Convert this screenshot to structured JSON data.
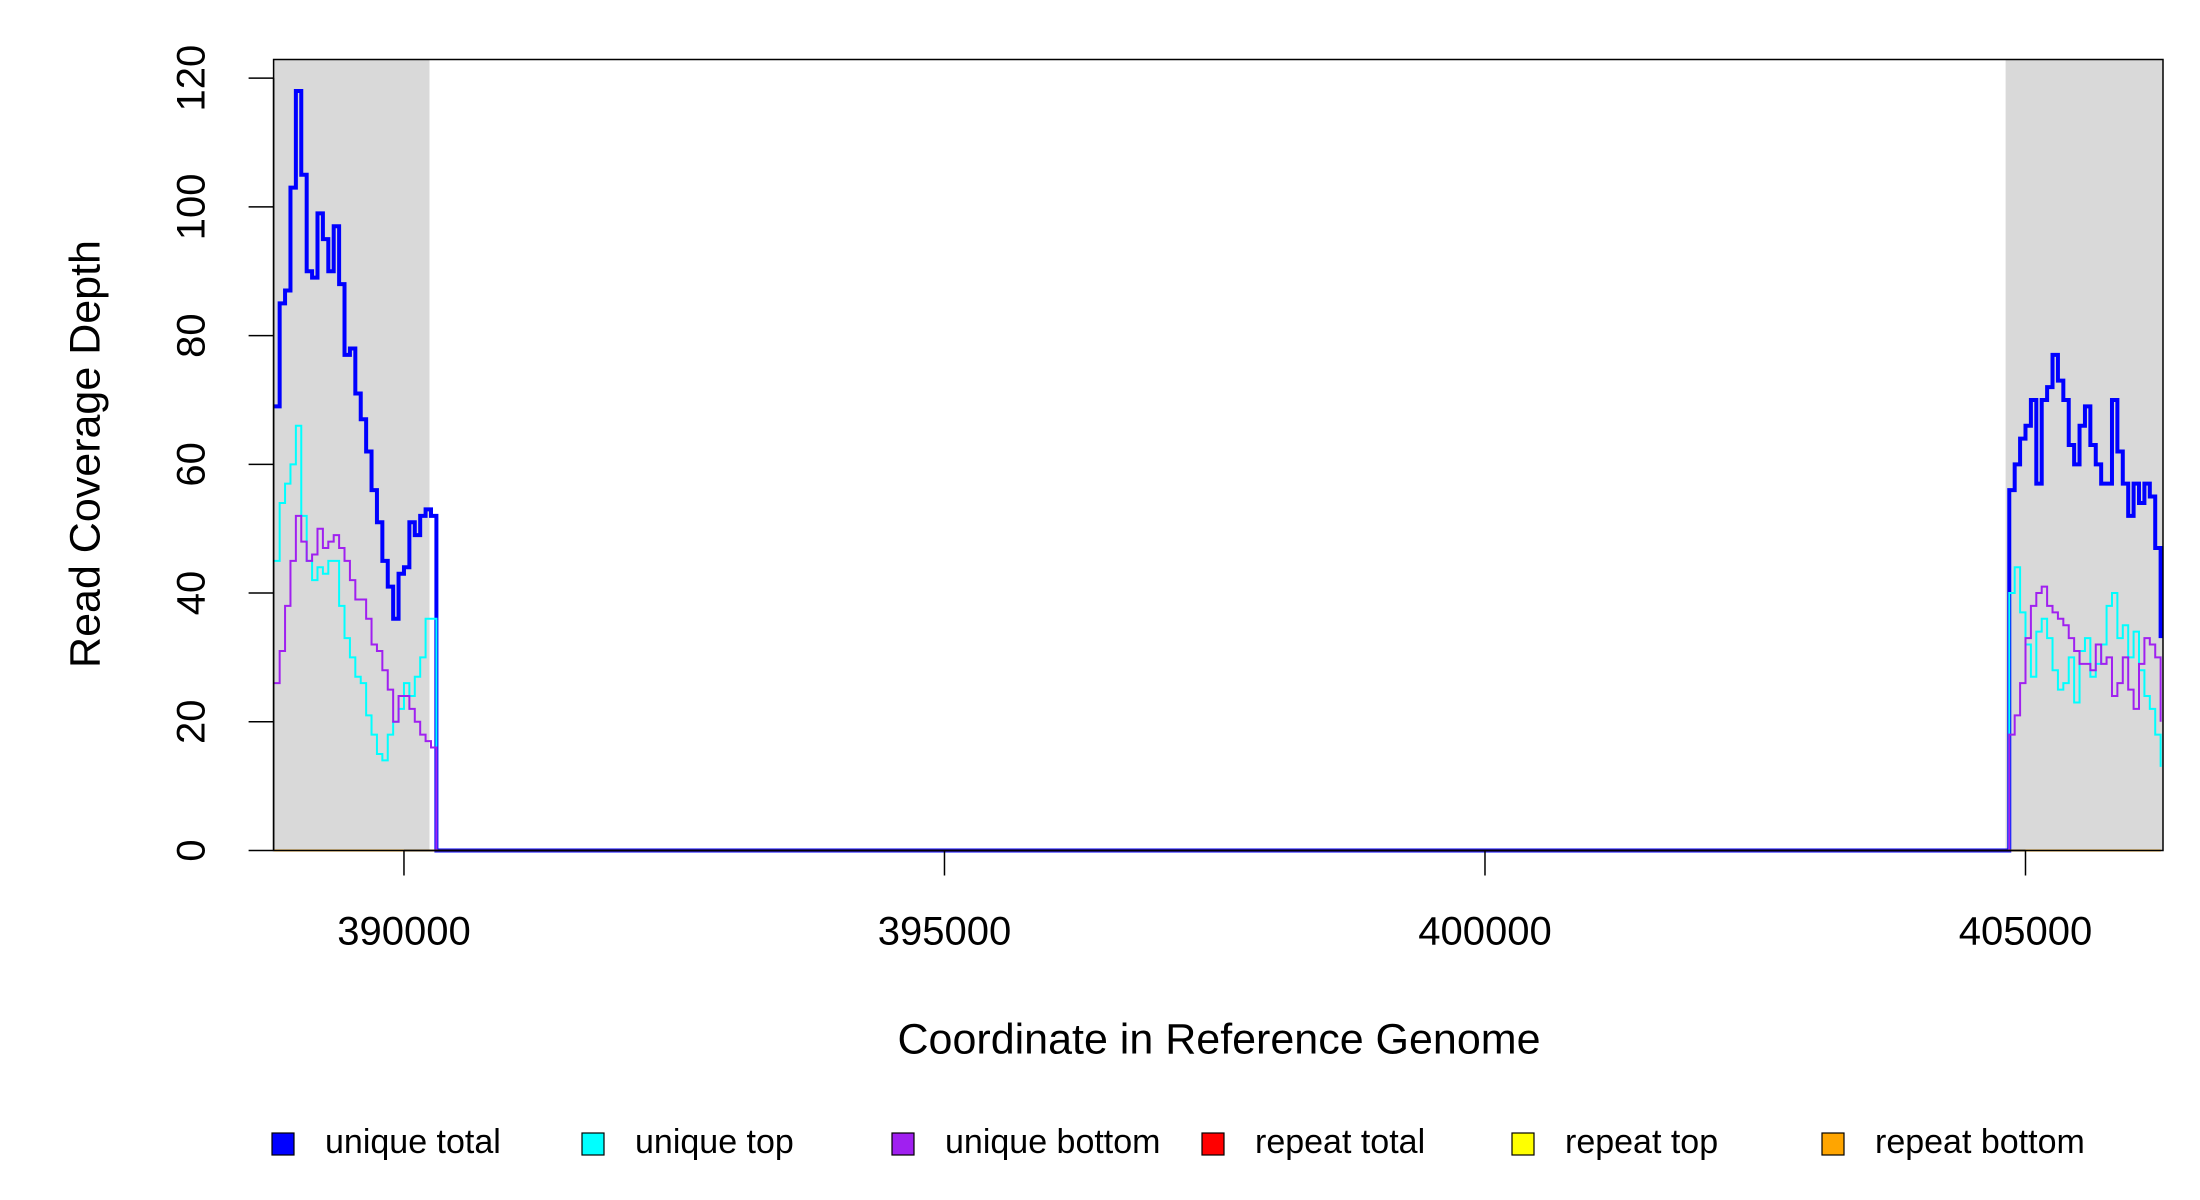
{
  "chart_data": {
    "type": "line",
    "step": "post",
    "xlabel": "Coordinate in Reference Genome",
    "ylabel": "Read Coverage Depth",
    "xlim": [
      388794,
      406272
    ],
    "ylim": [
      0,
      122.9
    ],
    "xticks": [
      390000,
      395000,
      400000,
      405000
    ],
    "yticks": [
      0,
      20,
      40,
      60,
      80,
      100,
      120
    ],
    "shaded_regions": [
      [
        388794,
        390236
      ],
      [
        404816,
        406272
      ]
    ],
    "shade_color": "#d9d9d9",
    "legend": "bottom",
    "x": [
      388800,
      388850,
      388900,
      388950,
      389000,
      389050,
      389100,
      389150,
      389200,
      389250,
      389300,
      389350,
      389400,
      389450,
      389500,
      389550,
      389600,
      389650,
      389700,
      389750,
      389800,
      389850,
      389900,
      389950,
      390000,
      390050,
      390100,
      390150,
      390200,
      390250,
      390300,
      404800,
      404850,
      404900,
      404950,
      405000,
      405050,
      405100,
      405150,
      405200,
      405250,
      405300,
      405350,
      405400,
      405450,
      405500,
      405550,
      405600,
      405650,
      405700,
      405750,
      405800,
      405850,
      405900,
      405950,
      406000,
      406050,
      406100,
      406150,
      406200,
      406250
    ],
    "series": [
      {
        "name": "unique total",
        "color": "#0000ff",
        "width": 4,
        "values": [
          69,
          85,
          87,
          103,
          118,
          105,
          90,
          89,
          99,
          95,
          90,
          97,
          88,
          77,
          78,
          71,
          67,
          62,
          56,
          51,
          45,
          41,
          36,
          43,
          44,
          51,
          49,
          52,
          53,
          52,
          0,
          0,
          56,
          60,
          64,
          66,
          70,
          57,
          70,
          72,
          77,
          73,
          70,
          63,
          60,
          66,
          69,
          63,
          60,
          57,
          57,
          70,
          62,
          57,
          52,
          57,
          54,
          57,
          55,
          47,
          33
        ]
      },
      {
        "name": "unique top",
        "color": "#00ffff",
        "width": 2,
        "values": [
          45,
          54,
          57,
          60,
          66,
          52,
          45,
          42,
          44,
          43,
          45,
          45,
          38,
          33,
          30,
          27,
          26,
          21,
          18,
          15,
          14,
          18,
          20,
          22,
          26,
          24,
          27,
          30,
          36,
          36,
          0,
          0,
          40,
          44,
          37,
          32,
          27,
          34,
          36,
          33,
          28,
          25,
          26,
          30,
          23,
          31,
          33,
          27,
          29,
          32,
          38,
          40,
          33,
          35,
          30,
          34,
          28,
          24,
          22,
          18,
          13
        ]
      },
      {
        "name": "unique bottom",
        "color": "#a020f0",
        "width": 2,
        "values": [
          26,
          31,
          38,
          45,
          52,
          48,
          45,
          46,
          50,
          47,
          48,
          49,
          47,
          45,
          42,
          39,
          39,
          36,
          32,
          31,
          28,
          25,
          20,
          24,
          24,
          22,
          20,
          18,
          17,
          16,
          0,
          0,
          18,
          21,
          26,
          33,
          38,
          40,
          41,
          38,
          37,
          36,
          35,
          33,
          31,
          29,
          29,
          28,
          32,
          29,
          30,
          24,
          26,
          30,
          25,
          22,
          29,
          33,
          32,
          30,
          20
        ]
      },
      {
        "name": "repeat total",
        "color": "#ff0000",
        "width": 2,
        "values": [
          0,
          0,
          0,
          0,
          0,
          0,
          0,
          0,
          0,
          0,
          0,
          0,
          0,
          0,
          0,
          0,
          0,
          0,
          0,
          0,
          0,
          0,
          0,
          0,
          0,
          0,
          0,
          0,
          0,
          0,
          0,
          0,
          0,
          0,
          0,
          0,
          0,
          0,
          0,
          0,
          0,
          0,
          0,
          0,
          0,
          0,
          0,
          0,
          0,
          0,
          0,
          0,
          0,
          0,
          0,
          0,
          0,
          0,
          0,
          0,
          0
        ]
      },
      {
        "name": "repeat top",
        "color": "#ffff00",
        "width": 2,
        "values": [
          0,
          0,
          0,
          0,
          0,
          0,
          0,
          0,
          0,
          0,
          0,
          0,
          0,
          0,
          0,
          0,
          0,
          0,
          0,
          0,
          0,
          0,
          0,
          0,
          0,
          0,
          0,
          0,
          0,
          0,
          0,
          0,
          0,
          0,
          0,
          0,
          0,
          0,
          0,
          0,
          0,
          0,
          0,
          0,
          0,
          0,
          0,
          0,
          0,
          0,
          0,
          0,
          0,
          0,
          0,
          0,
          0,
          0,
          0,
          0,
          0
        ]
      },
      {
        "name": "repeat bottom",
        "color": "#ffa500",
        "width": 2,
        "values": [
          0,
          0,
          0,
          0,
          0,
          0,
          0,
          0,
          0,
          0,
          0,
          0,
          0,
          0,
          0,
          0,
          0,
          0,
          0,
          0,
          0,
          0,
          0,
          0,
          0,
          0,
          0,
          0,
          0,
          0,
          0,
          0,
          0,
          0,
          0,
          0,
          0,
          0,
          0,
          0,
          0,
          0,
          0,
          0,
          0,
          0,
          0,
          0,
          0,
          0,
          0,
          0,
          0,
          0,
          0,
          0,
          0,
          0,
          0,
          0,
          0
        ]
      }
    ]
  }
}
